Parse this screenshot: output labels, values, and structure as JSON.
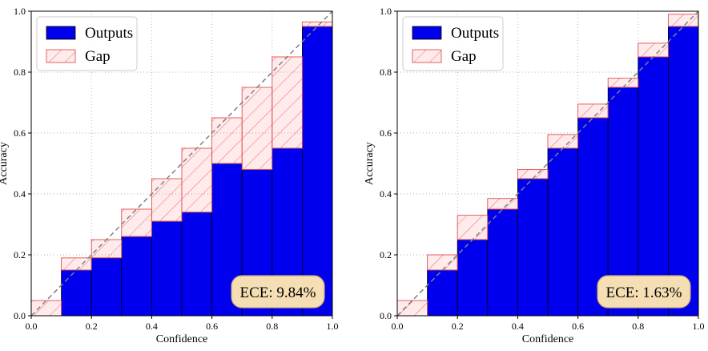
{
  "chart_data": [
    {
      "type": "bar",
      "title": "",
      "xlabel": "Confidence",
      "ylabel": "Accuracy",
      "xlim": [
        0.0,
        1.0
      ],
      "ylim": [
        0.0,
        1.0
      ],
      "xticks": [
        "0.0",
        "0.2",
        "0.4",
        "0.6",
        "0.8",
        "1.0"
      ],
      "yticks": [
        "0.0",
        "0.2",
        "0.4",
        "0.6",
        "0.8",
        "1.0"
      ],
      "grid": true,
      "legend_position": "top-left",
      "bin_edges": [
        0.0,
        0.1,
        0.2,
        0.3,
        0.4,
        0.5,
        0.6,
        0.7,
        0.8,
        0.9,
        1.0
      ],
      "series": [
        {
          "name": "Outputs",
          "color": "#0000ee",
          "values": [
            0.0,
            0.15,
            0.19,
            0.26,
            0.31,
            0.34,
            0.5,
            0.48,
            0.55,
            0.95
          ]
        },
        {
          "name": "Gap",
          "color": "#f4a0a0",
          "values": [
            0.05,
            0.19,
            0.25,
            0.35,
            0.45,
            0.55,
            0.65,
            0.75,
            0.85,
            0.965
          ]
        }
      ],
      "annotation": "ECE: 9.84%"
    },
    {
      "type": "bar",
      "title": "",
      "xlabel": "Confidence",
      "ylabel": "Accuracy",
      "xlim": [
        0.0,
        1.0
      ],
      "ylim": [
        0.0,
        1.0
      ],
      "xticks": [
        "0.0",
        "0.2",
        "0.4",
        "0.6",
        "0.8",
        "1.0"
      ],
      "yticks": [
        "0.0",
        "0.2",
        "0.4",
        "0.6",
        "0.8",
        "1.0"
      ],
      "grid": true,
      "legend_position": "top-left",
      "bin_edges": [
        0.0,
        0.1,
        0.2,
        0.3,
        0.4,
        0.5,
        0.6,
        0.7,
        0.8,
        0.9,
        1.0
      ],
      "series": [
        {
          "name": "Outputs",
          "color": "#0000ee",
          "values": [
            0.0,
            0.15,
            0.25,
            0.35,
            0.45,
            0.55,
            0.65,
            0.75,
            0.85,
            0.95
          ]
        },
        {
          "name": "Gap",
          "color": "#f4a0a0",
          "values": [
            0.05,
            0.2,
            0.33,
            0.385,
            0.48,
            0.595,
            0.695,
            0.78,
            0.895,
            0.99
          ]
        }
      ],
      "annotation": "ECE: 1.63%"
    }
  ]
}
